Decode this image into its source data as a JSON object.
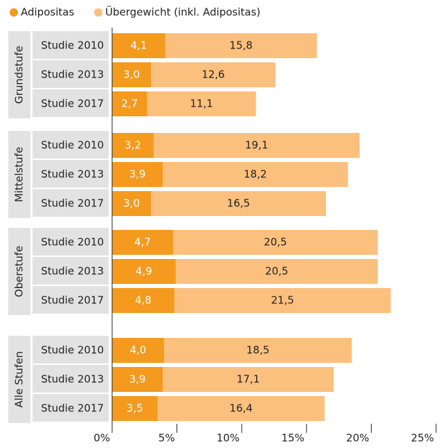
{
  "chart_data": {
    "type": "bar",
    "groups": [
      {
        "label": "Grundstufe",
        "categories": [
          "Studie 2010",
          "Studie 2013",
          "Studie 2017"
        ]
      },
      {
        "label": "Mittelstufe",
        "categories": [
          "Studie 2010",
          "Studie 2013",
          "Studie 2017"
        ]
      },
      {
        "label": "Oberstufe",
        "categories": [
          "Studie 2010",
          "Studie 2013",
          "Studie 2017"
        ]
      },
      {
        "label": "Alle Stufen",
        "categories": [
          "Studie 2010",
          "Studie 2013",
          "Studie 2017"
        ]
      }
    ],
    "series": [
      {
        "name": "Übergewicht (inkl. Adipositas)",
        "color": "#fbc07e",
        "values": [
          15.8,
          12.6,
          11.1,
          19.1,
          18.2,
          16.5,
          20.5,
          20.5,
          21.5,
          18.5,
          17.1,
          16.4
        ],
        "value_labels": [
          "15,8",
          "12,6",
          "11,1",
          "19,1",
          "18,2",
          "16,5",
          "20,5",
          "20,5",
          "21,5",
          "18,5",
          "17,1",
          "16,4"
        ]
      },
      {
        "name": "Adipositas",
        "color": "#f39a1f",
        "values": [
          4.1,
          3.0,
          2.7,
          3.2,
          3.9,
          3.0,
          4.7,
          4.9,
          4.8,
          4.0,
          3.9,
          3.5
        ],
        "value_labels": [
          "4,1",
          "3,0",
          "2,7",
          "3,2",
          "3,9",
          "3,0",
          "4,7",
          "4,9",
          "4,8",
          "4,0",
          "3,9",
          "3,5"
        ]
      }
    ],
    "xlim": [
      0,
      25
    ],
    "xticks": [
      {
        "value": 0,
        "label": "0%"
      },
      {
        "value": 5,
        "label": "5%"
      },
      {
        "value": 10,
        "label": "10%"
      },
      {
        "value": 15,
        "label": "15%"
      },
      {
        "value": 20,
        "label": "20%"
      },
      {
        "value": 25,
        "label": "25%"
      }
    ]
  }
}
